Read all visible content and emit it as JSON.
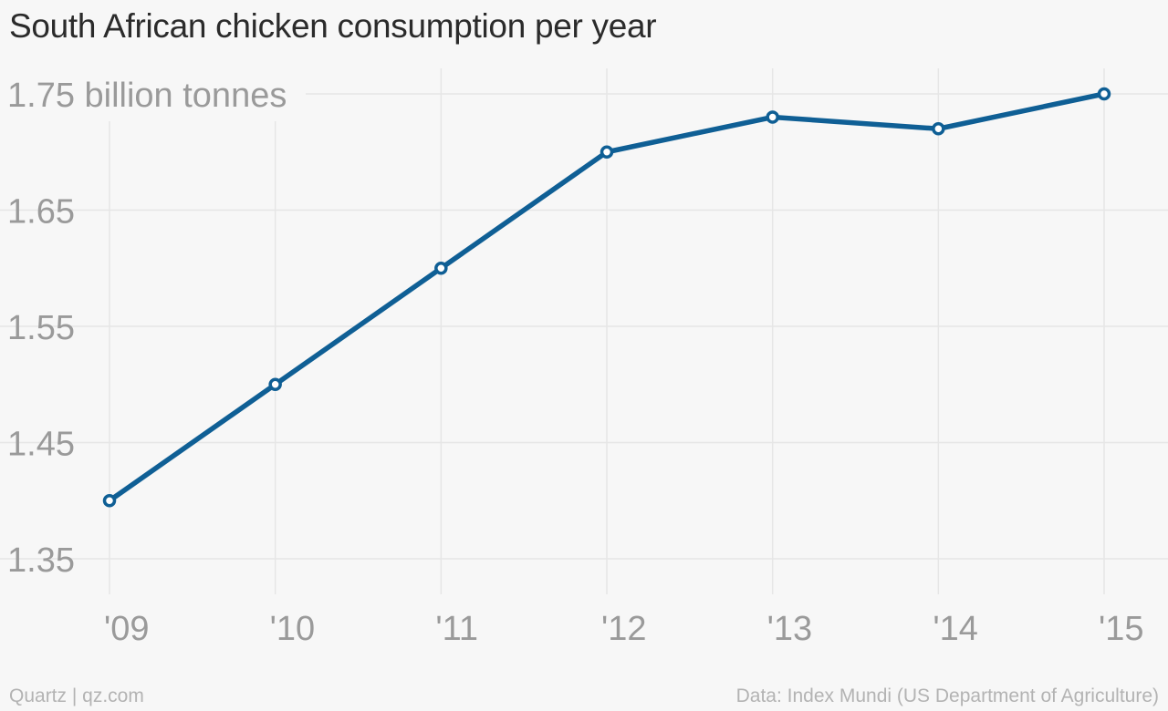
{
  "chart_data": {
    "type": "line",
    "title": "South African chicken consumption per year",
    "unit_label": "billion tonnes",
    "x": [
      "'09",
      "'10",
      "'11",
      "'12",
      "'13",
      "'14",
      "'15"
    ],
    "series": [
      {
        "values": [
          1.4,
          1.5,
          1.6,
          1.7,
          1.73,
          1.72,
          1.75
        ],
        "color": "#0f5f95"
      }
    ],
    "y_ticks": [
      "1.35",
      "1.45",
      "1.55",
      "1.65",
      "1.75"
    ],
    "ylim": [
      1.35,
      1.75
    ],
    "grid": true,
    "legend": "none"
  },
  "footer": {
    "source_left": "Quartz | qz.com",
    "source_right": "Data: Index Mundi (US Department of Agriculture)"
  }
}
